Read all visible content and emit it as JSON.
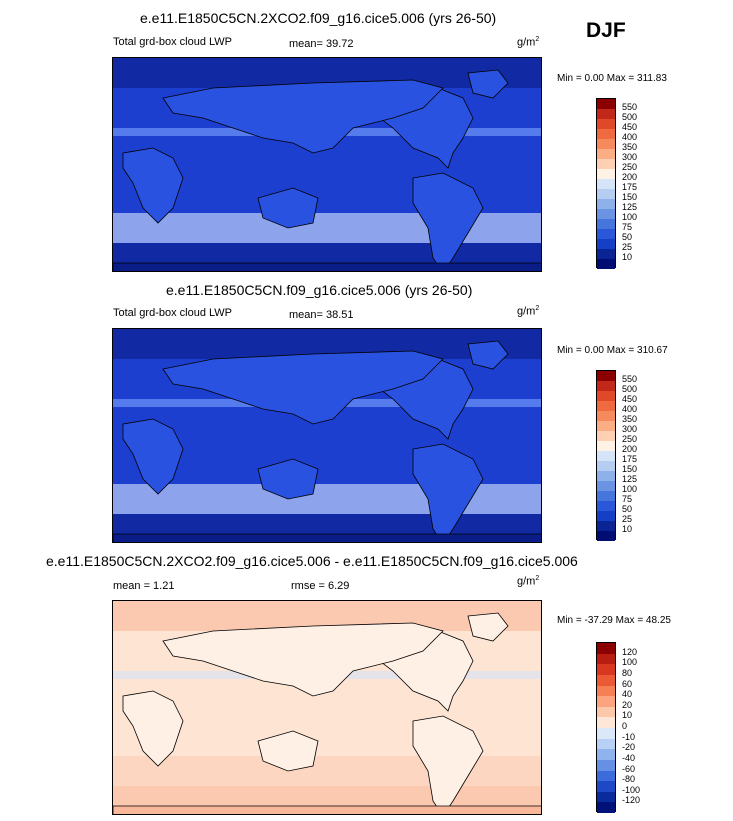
{
  "season": "DJF",
  "panels": [
    {
      "title": "e.e11.E1850C5CN.2XCO2.f09_g16.cice5.006 (yrs 26-50)",
      "variable": "Total grd-box cloud LWP",
      "stat1": "mean=  39.72",
      "stat2": "",
      "units": "g/m",
      "units_sup": "2",
      "minmax": "Min =   0.00 Max = 311.83",
      "colorbar_labels": [
        "550",
        "500",
        "450",
        "400",
        "350",
        "300",
        "250",
        "200",
        "175",
        "150",
        "125",
        "100",
        "75",
        "50",
        "25",
        "10"
      ],
      "colorbar_colors": [
        "#8b0000",
        "#c2281a",
        "#e0482a",
        "#ef6a3e",
        "#f68a5c",
        "#fbad85",
        "#fdd0b3",
        "#fff2e4",
        "#d6e4f8",
        "#b4cdf1",
        "#8eb1ea",
        "#6a93e3",
        "#4675dc",
        "#2a58d6",
        "#153fc4",
        "#0a2496",
        "#020d73"
      ],
      "map_colors": {
        "ocean": "#1c3fd0",
        "dark": "#0a1d86",
        "land": "#2a52e0",
        "bright": "#7ba3ff",
        "light": "#d8e6ff"
      }
    },
    {
      "title": "e.e11.E1850C5CN.f09_g16.cice5.006 (yrs 26-50)",
      "variable": "Total grd-box cloud LWP",
      "stat1": "mean=  38.51",
      "stat2": "",
      "units": "g/m",
      "units_sup": "2",
      "minmax": "Min =   0.00 Max = 310.67",
      "colorbar_labels": [
        "550",
        "500",
        "450",
        "400",
        "350",
        "300",
        "250",
        "200",
        "175",
        "150",
        "125",
        "100",
        "75",
        "50",
        "25",
        "10"
      ],
      "colorbar_colors": [
        "#8b0000",
        "#c2281a",
        "#e0482a",
        "#ef6a3e",
        "#f68a5c",
        "#fbad85",
        "#fdd0b3",
        "#fff2e4",
        "#d6e4f8",
        "#b4cdf1",
        "#8eb1ea",
        "#6a93e3",
        "#4675dc",
        "#2a58d6",
        "#153fc4",
        "#0a2496",
        "#020d73"
      ],
      "map_colors": {
        "ocean": "#1c3fd0",
        "dark": "#0a1d86",
        "land": "#2a52e0",
        "bright": "#7ba3ff",
        "light": "#d8e6ff"
      }
    },
    {
      "title": "e.e11.E1850C5CN.2XCO2.f09_g16.cice5.006 - e.e11.E1850C5CN.f09_g16.cice5.006",
      "variable": "",
      "stat1": "mean =   1.21",
      "stat2": "rmse =   6.29",
      "units": "g/m",
      "units_sup": "2",
      "minmax": "Min = -37.29 Max =  48.25",
      "colorbar_labels": [
        "120",
        "100",
        "80",
        "60",
        "40",
        "20",
        "10",
        "0",
        "-10",
        "-20",
        "-40",
        "-60",
        "-80",
        "-100",
        "-120"
      ],
      "colorbar_colors": [
        "#8b0000",
        "#b81d12",
        "#d8381f",
        "#ec5a35",
        "#f67f55",
        "#fba47f",
        "#fdc8a9",
        "#fee7d6",
        "#dbe8fa",
        "#b7d0f3",
        "#8fb3ec",
        "#6590e4",
        "#3c6cdb",
        "#1e48c6",
        "#0a2b9c",
        "#001279"
      ],
      "map_colors": {
        "ocean": "#fde4d3",
        "dark": "#f9b89a",
        "land": "#fff0e6",
        "bright": "#d3e3f9",
        "light": "#fbcdb5"
      }
    }
  ]
}
